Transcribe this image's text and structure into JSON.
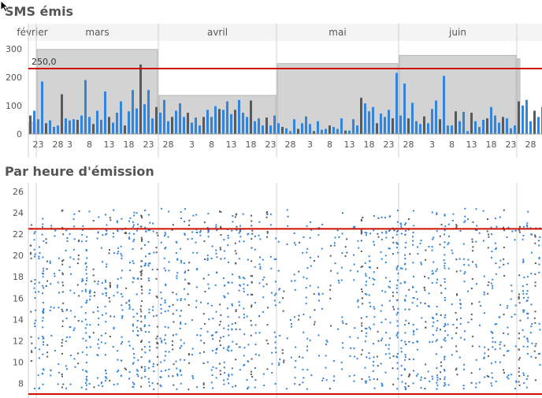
{
  "title_top": "SMS émis",
  "title_bottom": "Par heure d'émission",
  "colors": {
    "blue": "#3385db",
    "gray": "#5a5a5a",
    "monthBox": "#d3d3d3",
    "threshold": "#cc1100",
    "grid": "#d0d0d0",
    "label": "#555555"
  },
  "chart_data": [
    {
      "type": "bar",
      "months": [
        {
          "name": "février",
          "days": 2,
          "avg": 42
        },
        {
          "name": "mars",
          "days": 31,
          "avg": 298
        },
        {
          "name": "avril",
          "days": 30,
          "avg": 136
        },
        {
          "name": "mai",
          "days": 31,
          "avg": 248
        },
        {
          "name": "juin",
          "days": 30,
          "avg": 277
        },
        {
          "name": "",
          "days": 1,
          "avg": 265
        }
      ],
      "day_ticks": [
        "23",
        "28",
        "3",
        "8",
        "13",
        "18",
        "23",
        "28",
        "3",
        "8",
        "13",
        "18",
        "23",
        "28",
        "3",
        "8",
        "13",
        "18",
        "23",
        "28",
        "3",
        "8",
        "13",
        "18",
        "23",
        "28"
      ],
      "ylim": [
        0,
        300
      ],
      "yticks": [
        "0",
        "100",
        "200",
        "300"
      ],
      "threshold_label": "250,0",
      "threshold": 250,
      "values": [
        65,
        82,
        52,
        185,
        38,
        48,
        25,
        30,
        140,
        55,
        48,
        52,
        50,
        65,
        190,
        60,
        35,
        82,
        50,
        150,
        60,
        40,
        75,
        115,
        30,
        80,
        155,
        90,
        245,
        105,
        155,
        55,
        95,
        75,
        120,
        45,
        60,
        82,
        108,
        60,
        75,
        40,
        58,
        30,
        60,
        85,
        60,
        98,
        88,
        85,
        115,
        70,
        85,
        120,
        75,
        60,
        118,
        45,
        55,
        30,
        58,
        30,
        65,
        38,
        25,
        20,
        10,
        52,
        18,
        38,
        62,
        35,
        10,
        45,
        15,
        18,
        30,
        25,
        18,
        55,
        12,
        12,
        52,
        30,
        128,
        108,
        80,
        95,
        38,
        72,
        60,
        85,
        55,
        215,
        65,
        178,
        55,
        110,
        45,
        35,
        62,
        38,
        88,
        118,
        52,
        205,
        30,
        30,
        80,
        45,
        78,
        10,
        75,
        45,
        25,
        50,
        55,
        95,
        65,
        40,
        60,
        55,
        20,
        30,
        115,
        100,
        120,
        45,
        82,
        60,
        95,
        40,
        80,
        62,
        50,
        38,
        78,
        25,
        30,
        52,
        100,
        35,
        90,
        45,
        25,
        60,
        40,
        82,
        40,
        100,
        62,
        75,
        25,
        55,
        270,
        115,
        52,
        88,
        65
      ]
    },
    {
      "type": "scatter",
      "ylim": [
        7,
        26
      ],
      "yticks": [
        "8",
        "10",
        "12",
        "14",
        "16",
        "18",
        "20",
        "22",
        "24",
        "26"
      ],
      "thresholds": [
        22.5,
        7
      ]
    }
  ]
}
